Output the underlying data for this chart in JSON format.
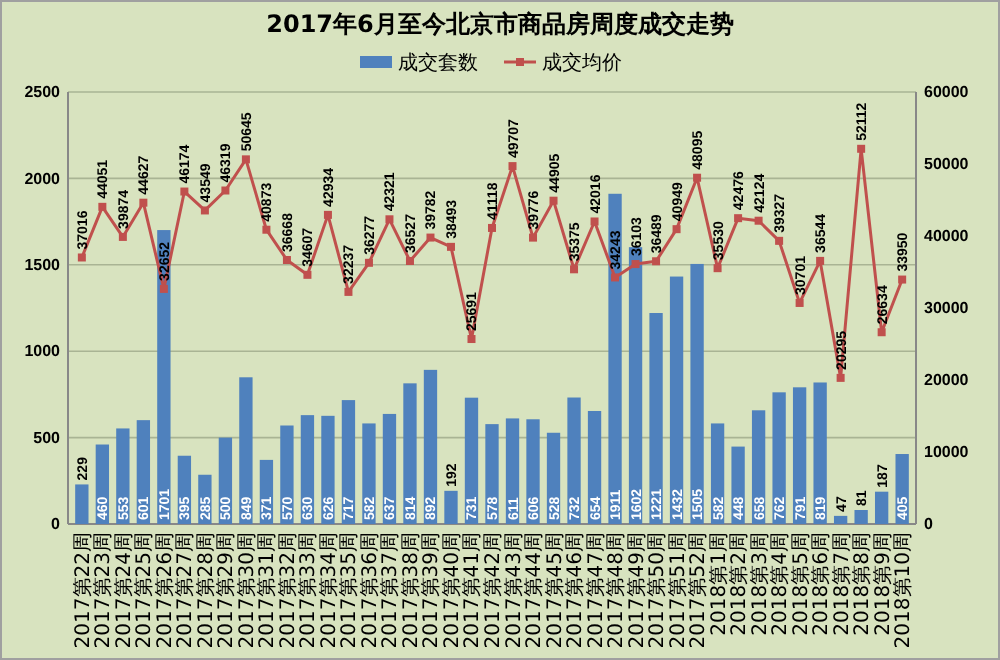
{
  "chart_data": {
    "type": "bar",
    "title": "2017年6月至今北京市商品房周度成交走势",
    "categories": [
      "2017第22周",
      "2017第23周",
      "2017第24周",
      "2017第25周",
      "2017第26周",
      "2017第27周",
      "2017第28周",
      "2017第29周",
      "2017第30周",
      "2017第31周",
      "2017第32周",
      "2017第33周",
      "2017第34周",
      "2017第35周",
      "2017第36周",
      "2017第37周",
      "2017第38周",
      "2017第39周",
      "2017第40周",
      "2017第41周",
      "2017第42周",
      "2017第43周",
      "2017第44周",
      "2017第45周",
      "2017第46周",
      "2017第47周",
      "2017第48周",
      "2017第49周",
      "2017第50周",
      "2017第51周",
      "2017第52周",
      "2018第1周",
      "2018第2周",
      "2018第3周",
      "2018第4周",
      "2018第5周",
      "2018第6周",
      "2018第7周",
      "2018第8周",
      "2018第9周",
      "2018第10周"
    ],
    "series": [
      {
        "name": "成交套数",
        "color": "#4f81bd",
        "values": [
          229,
          460,
          553,
          601,
          1701,
          395,
          285,
          500,
          849,
          371,
          570,
          630,
          626,
          717,
          582,
          637,
          814,
          892,
          192,
          731,
          578,
          611,
          606,
          528,
          732,
          654,
          1911,
          1602,
          1221,
          1432,
          1505,
          582,
          448,
          658,
          762,
          791,
          819,
          47,
          81,
          187,
          405
        ]
      },
      {
        "name": "成交均价",
        "type": "line",
        "axis": "y2",
        "marker": "square",
        "color": "#c0504d",
        "values": [
          37016,
          44051,
          39874,
          44627,
          32652,
          46174,
          43549,
          46319,
          50645,
          40873,
          36668,
          34607,
          42934,
          32237,
          36277,
          42321,
          36527,
          39782,
          38493,
          25691,
          41118,
          49707,
          39776,
          44905,
          35375,
          42016,
          34243,
          36103,
          36489,
          40949,
          48095,
          35530,
          42476,
          42124,
          39327,
          30701,
          36544,
          20295,
          52112,
          26634,
          33950
        ]
      }
    ],
    "ylim": [
      0,
      2500
    ],
    "yticks": [
      0,
      500,
      1000,
      1500,
      2000,
      2500
    ],
    "y2lim": [
      0,
      60000
    ],
    "y2ticks": [
      0,
      10000,
      20000,
      30000,
      40000,
      50000,
      60000
    ],
    "grid": "y",
    "legend": "top",
    "data_labels": true
  }
}
